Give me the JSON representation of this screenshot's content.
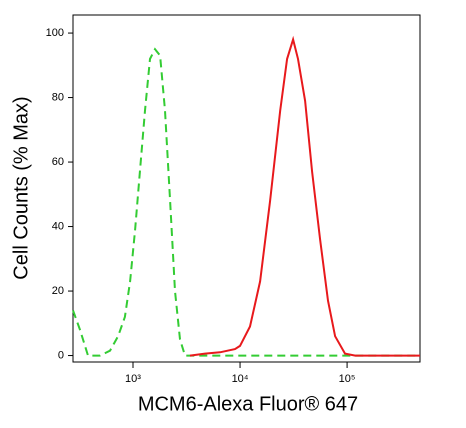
{
  "chart_data": {
    "type": "line",
    "x_label": "MCM6-Alexa Fluor® 647",
    "y_label": "Cell Counts (% Max)",
    "xscale": "log",
    "xlim": [
      275,
      480000
    ],
    "ylim": [
      -2,
      105.6
    ],
    "xticks": [
      {
        "value": 1000,
        "label": "10³"
      },
      {
        "value": 10000,
        "label": "10⁴"
      },
      {
        "value": 100000,
        "label": "10⁵"
      }
    ],
    "yticks": [
      0,
      20,
      40,
      60,
      80,
      100
    ],
    "series": [
      {
        "color": "#33cc33",
        "dash": true,
        "x": [
          275,
          320,
          380,
          490,
          610,
          725,
          840,
          940,
          1045,
          1160,
          1295,
          1440,
          1605,
          1790,
          1990,
          2220,
          2470,
          2750,
          3060,
          12400,
          56000,
          480000
        ],
        "values": [
          14,
          8,
          0,
          0,
          1.5,
          6,
          12,
          23,
          39,
          57,
          76,
          92,
          95,
          93,
          76,
          48,
          20,
          5,
          0,
          0,
          0,
          0
        ]
      },
      {
        "color": "#e8191c",
        "dash": false,
        "x": [
          3410,
          4710,
          6500,
          8980,
          10000,
          12400,
          15400,
          19100,
          23700,
          27500,
          31300,
          34800,
          40500,
          47100,
          56000,
          66400,
          77300,
          95700,
          119000,
          480000
        ],
        "values": [
          0,
          0.6,
          1,
          2,
          3,
          9,
          23,
          48,
          76,
          92,
          98,
          92,
          79,
          57,
          36,
          17,
          6,
          0.6,
          0,
          0
        ]
      }
    ]
  }
}
